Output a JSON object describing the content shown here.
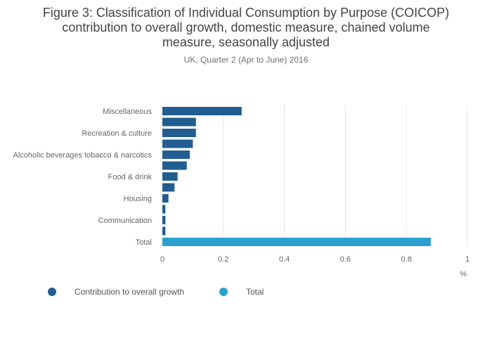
{
  "title_lines": [
    "Figure 3: Classification of Individual Consumption by Purpose (COICOP)",
    "contribution to overall growth, domestic measure, chained volume",
    "measure, seasonally adjusted"
  ],
  "subtitle": "UK, Quarter 2 (Apr to June) 2016",
  "colors": {
    "series": "#225d91",
    "total": "#2aa0d0",
    "grid": "#e6e6e6",
    "axis_text": "#666666"
  },
  "chart_data": {
    "type": "bar",
    "orientation": "horizontal",
    "categories": [
      "Miscellaneous",
      "",
      "Recreation & culture",
      "",
      "Alcoholic beverages tobacco & narcotics",
      "",
      "Food & drink",
      "",
      "Housing",
      "",
      "Communication",
      "",
      "Total"
    ],
    "series": [
      {
        "name": "Contribution to overall growth",
        "values": [
          0.26,
          0.11,
          0.11,
          0.1,
          0.09,
          0.08,
          0.05,
          0.04,
          0.02,
          0.01,
          0.01,
          0.01,
          null
        ]
      },
      {
        "name": "Total",
        "values": [
          null,
          null,
          null,
          null,
          null,
          null,
          null,
          null,
          null,
          null,
          null,
          null,
          0.88
        ]
      }
    ],
    "xticks": [
      "0",
      "0.2",
      "0.4",
      "0.6",
      "0.8",
      "1"
    ],
    "xtick_values": [
      0,
      0.2,
      0.4,
      0.6,
      0.8,
      1
    ],
    "xlim": [
      0,
      1
    ],
    "xlabel": "%",
    "ylabel": "",
    "grid": true,
    "legend_position": "bottom-left"
  },
  "legend": [
    {
      "label": "Contribution to overall growth",
      "color": "#225d91"
    },
    {
      "label": "Total",
      "color": "#2aa0d0"
    }
  ]
}
